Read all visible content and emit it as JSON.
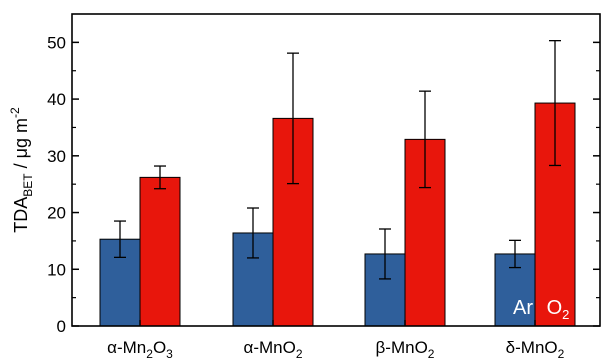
{
  "chart_data": {
    "type": "bar",
    "categories": [
      "α-Mn2O3",
      "α-MnO2",
      "β-MnO2",
      "δ-MnO2"
    ],
    "category_labels": [
      {
        "prefix": "α-Mn",
        "sub1": "2",
        "mid": "O",
        "sub2": "3"
      },
      {
        "prefix": "α-MnO",
        "sub1": "2",
        "mid": "",
        "sub2": ""
      },
      {
        "prefix": "β-MnO",
        "sub1": "2",
        "mid": "",
        "sub2": ""
      },
      {
        "prefix": "δ-MnO",
        "sub1": "2",
        "mid": "",
        "sub2": ""
      }
    ],
    "series": [
      {
        "name": "Ar",
        "values": [
          15.3,
          16.4,
          12.7,
          12.7
        ],
        "errors": [
          3.2,
          4.4,
          4.4,
          2.4
        ],
        "color": "#2f5f9b"
      },
      {
        "name": "O2",
        "values": [
          26.2,
          36.6,
          32.9,
          39.3
        ],
        "errors": [
          2.0,
          11.5,
          8.5,
          11.0
        ],
        "color": "#e8160c"
      }
    ],
    "ylabel": {
      "main": "TDA",
      "sub": "BET",
      "rest": " / μg m",
      "sup": "-2"
    },
    "ylim": [
      0,
      55
    ],
    "yticks": [
      "0",
      "10",
      "20",
      "30",
      "40",
      "50"
    ],
    "legend_labels": {
      "ar": "Ar",
      "o2_main": "O",
      "o2_sub": "2"
    },
    "grid": false
  }
}
